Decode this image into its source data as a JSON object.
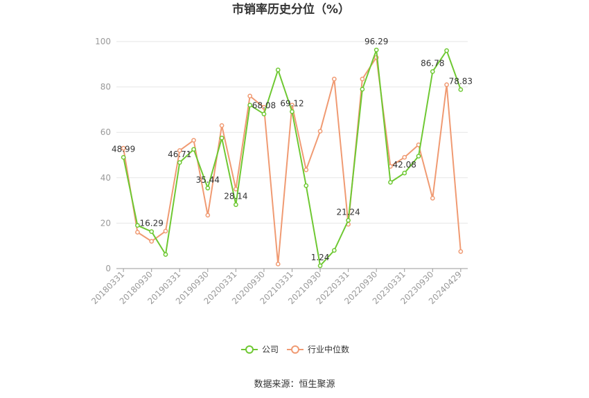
{
  "chart_data": {
    "type": "line",
    "title": "市销率历史分位（%）",
    "source": "数据来源：恒生聚源",
    "ylim": [
      0,
      100
    ],
    "yticks": [
      0,
      20,
      40,
      60,
      80,
      100
    ],
    "grid": true,
    "legend_position": "bottom",
    "x": [
      "20180331",
      "20180630",
      "20180930",
      "20181231",
      "20190331",
      "20190630",
      "20190930",
      "20191231",
      "20200331",
      "20200630",
      "20200930",
      "20201231",
      "20210331",
      "20210630",
      "20210930",
      "20211231",
      "20220331",
      "20220630",
      "20220930",
      "20221231",
      "20230331",
      "20230630",
      "20230930",
      "20231231",
      "20240429"
    ],
    "xtick_labels": [
      "20180331",
      "20180930",
      "20190331",
      "20190930",
      "20200331",
      "20200930",
      "20210331",
      "20210930",
      "20220331",
      "20220930",
      "20230331",
      "20230930",
      "20240429"
    ],
    "series": [
      {
        "name": "公司",
        "color": "#6ec832",
        "values": [
          48.99,
          19.0,
          16.29,
          6.2,
          46.71,
          52.5,
          35.44,
          57.5,
          28.14,
          72.0,
          68.08,
          87.5,
          69.12,
          36.5,
          1.24,
          8.0,
          21.24,
          79.0,
          96.29,
          38.0,
          42.08,
          49.5,
          86.78,
          96.0,
          78.83
        ]
      },
      {
        "name": "行业中位数",
        "color": "#f09a72",
        "values": [
          53.0,
          16.0,
          12.0,
          16.5,
          52.0,
          56.5,
          23.5,
          63.0,
          35.0,
          76.0,
          71.0,
          2.0,
          72.0,
          43.5,
          60.5,
          83.5,
          19.5,
          83.5,
          93.0,
          45.0,
          49.0,
          54.5,
          31.0,
          81.0,
          7.5
        ]
      }
    ],
    "data_labels": [
      {
        "index": 0,
        "text": "48.99"
      },
      {
        "index": 2,
        "text": "16.29"
      },
      {
        "index": 4,
        "text": "46.71"
      },
      {
        "index": 6,
        "text": "35.44"
      },
      {
        "index": 8,
        "text": "28.14"
      },
      {
        "index": 10,
        "text": "68.08"
      },
      {
        "index": 12,
        "text": "69.12"
      },
      {
        "index": 14,
        "text": "1.24"
      },
      {
        "index": 16,
        "text": "21.24"
      },
      {
        "index": 18,
        "text": "96.29"
      },
      {
        "index": 20,
        "text": "42.08"
      },
      {
        "index": 22,
        "text": "86.78"
      },
      {
        "index": 24,
        "text": "78.83"
      }
    ]
  }
}
